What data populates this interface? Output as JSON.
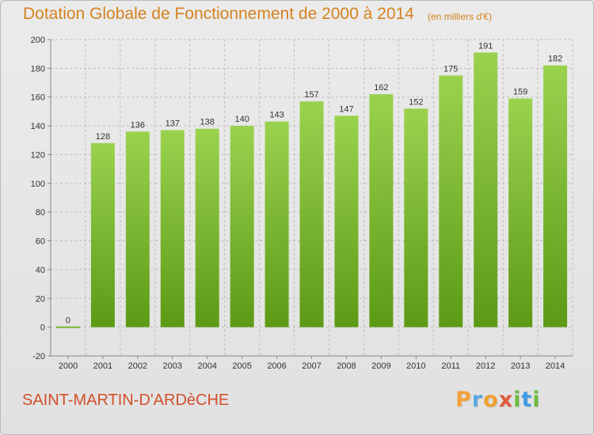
{
  "header": {
    "title": "Dotation Globale de Fonctionnement de 2000 à 2014",
    "unit_note": "(en milliers d'€)"
  },
  "footer": {
    "commune": "SAINT-MARTIN-D'ARDèCHE",
    "logo": {
      "letters": [
        "P",
        "r",
        "o",
        "x",
        "i",
        "t",
        "i"
      ],
      "colors": [
        "#f2a23a",
        "#58a9e0",
        "#f0a030",
        "#e05a3a",
        "#6dbb3f",
        "#3f9be0",
        "#6dbb3f"
      ]
    }
  },
  "colors": {
    "bar_light": "#9ad24e",
    "bar_dark": "#5c9a16",
    "grid": "#bdbdbd",
    "text_orange": "#d4821f",
    "text_red": "#d2502c"
  },
  "chart_data": {
    "type": "bar",
    "title": "Dotation Globale de Fonctionnement de 2000 à 2014",
    "subtitle": "(en milliers d'€)",
    "categories": [
      "2000",
      "2001",
      "2002",
      "2003",
      "2004",
      "2005",
      "2006",
      "2007",
      "2008",
      "2009",
      "2010",
      "2011",
      "2012",
      "2013",
      "2014"
    ],
    "values": [
      0,
      128,
      136,
      137,
      138,
      140,
      143,
      157,
      147,
      162,
      152,
      175,
      191,
      159,
      182
    ],
    "ylim": [
      -20,
      200
    ],
    "yticks": [
      -20,
      0,
      20,
      40,
      60,
      80,
      100,
      120,
      140,
      160,
      180,
      200
    ],
    "grid": true,
    "xlabel": "",
    "ylabel": ""
  }
}
